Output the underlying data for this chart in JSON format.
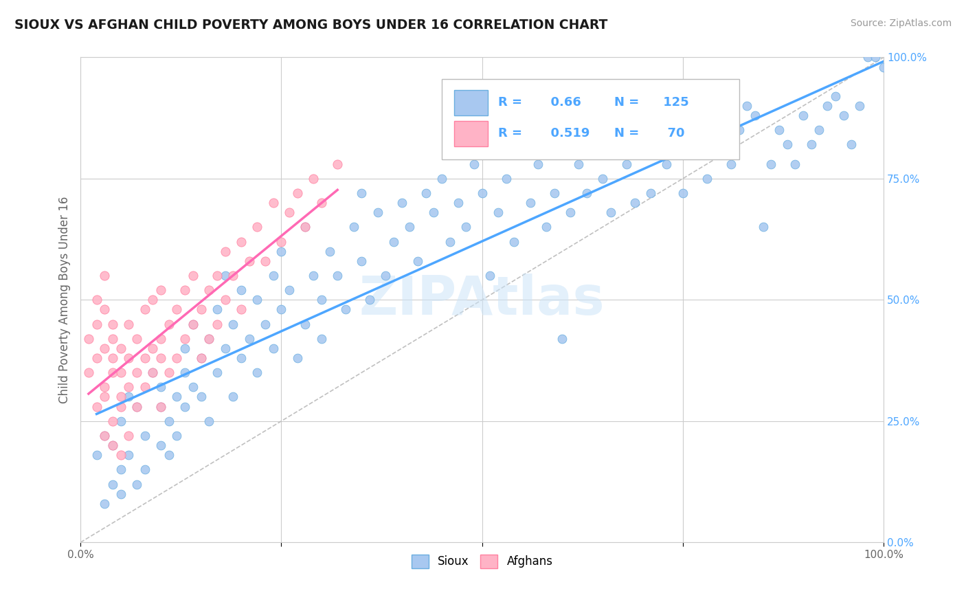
{
  "title": "SIOUX VS AFGHAN CHILD POVERTY AMONG BOYS UNDER 16 CORRELATION CHART",
  "source": "Source: ZipAtlas.com",
  "ylabel": "Child Poverty Among Boys Under 16",
  "legend_sioux_label": "Sioux",
  "legend_afghan_label": "Afghans",
  "R_sioux": 0.66,
  "N_sioux": 125,
  "R_afghan": 0.519,
  "N_afghan": 70,
  "watermark": "ZIPAtlas",
  "sioux_color": "#a8c8f0",
  "sioux_edge_color": "#6aaee0",
  "sioux_line_color": "#4da6ff",
  "afghan_color": "#ffb3c6",
  "afghan_edge_color": "#ff80a0",
  "afghan_line_color": "#ff69b4",
  "label_color": "#4da6ff",
  "grid_color": "#cccccc",
  "bg_color": "#ffffff",
  "sioux_scatter": [
    [
      0.02,
      0.18
    ],
    [
      0.03,
      0.22
    ],
    [
      0.03,
      0.08
    ],
    [
      0.04,
      0.12
    ],
    [
      0.04,
      0.2
    ],
    [
      0.05,
      0.15
    ],
    [
      0.05,
      0.1
    ],
    [
      0.05,
      0.25
    ],
    [
      0.06,
      0.18
    ],
    [
      0.06,
      0.3
    ],
    [
      0.07,
      0.12
    ],
    [
      0.07,
      0.28
    ],
    [
      0.08,
      0.22
    ],
    [
      0.08,
      0.15
    ],
    [
      0.09,
      0.35
    ],
    [
      0.1,
      0.2
    ],
    [
      0.1,
      0.28
    ],
    [
      0.1,
      0.32
    ],
    [
      0.11,
      0.25
    ],
    [
      0.11,
      0.18
    ],
    [
      0.12,
      0.3
    ],
    [
      0.12,
      0.22
    ],
    [
      0.13,
      0.4
    ],
    [
      0.13,
      0.35
    ],
    [
      0.13,
      0.28
    ],
    [
      0.14,
      0.32
    ],
    [
      0.14,
      0.45
    ],
    [
      0.15,
      0.38
    ],
    [
      0.15,
      0.3
    ],
    [
      0.16,
      0.42
    ],
    [
      0.16,
      0.25
    ],
    [
      0.17,
      0.48
    ],
    [
      0.17,
      0.35
    ],
    [
      0.18,
      0.4
    ],
    [
      0.18,
      0.55
    ],
    [
      0.19,
      0.3
    ],
    [
      0.19,
      0.45
    ],
    [
      0.2,
      0.38
    ],
    [
      0.2,
      0.52
    ],
    [
      0.21,
      0.42
    ],
    [
      0.22,
      0.5
    ],
    [
      0.22,
      0.35
    ],
    [
      0.23,
      0.45
    ],
    [
      0.24,
      0.55
    ],
    [
      0.24,
      0.4
    ],
    [
      0.25,
      0.6
    ],
    [
      0.25,
      0.48
    ],
    [
      0.26,
      0.52
    ],
    [
      0.27,
      0.38
    ],
    [
      0.28,
      0.65
    ],
    [
      0.28,
      0.45
    ],
    [
      0.29,
      0.55
    ],
    [
      0.3,
      0.5
    ],
    [
      0.3,
      0.42
    ],
    [
      0.31,
      0.6
    ],
    [
      0.32,
      0.55
    ],
    [
      0.33,
      0.48
    ],
    [
      0.34,
      0.65
    ],
    [
      0.35,
      0.58
    ],
    [
      0.35,
      0.72
    ],
    [
      0.36,
      0.5
    ],
    [
      0.37,
      0.68
    ],
    [
      0.38,
      0.55
    ],
    [
      0.39,
      0.62
    ],
    [
      0.4,
      0.7
    ],
    [
      0.41,
      0.65
    ],
    [
      0.42,
      0.58
    ],
    [
      0.43,
      0.72
    ],
    [
      0.44,
      0.68
    ],
    [
      0.45,
      0.75
    ],
    [
      0.46,
      0.62
    ],
    [
      0.47,
      0.7
    ],
    [
      0.48,
      0.65
    ],
    [
      0.49,
      0.78
    ],
    [
      0.5,
      0.72
    ],
    [
      0.51,
      0.55
    ],
    [
      0.52,
      0.68
    ],
    [
      0.53,
      0.75
    ],
    [
      0.54,
      0.62
    ],
    [
      0.55,
      0.8
    ],
    [
      0.56,
      0.7
    ],
    [
      0.57,
      0.78
    ],
    [
      0.58,
      0.65
    ],
    [
      0.59,
      0.72
    ],
    [
      0.6,
      0.85
    ],
    [
      0.6,
      0.42
    ],
    [
      0.61,
      0.68
    ],
    [
      0.62,
      0.78
    ],
    [
      0.63,
      0.72
    ],
    [
      0.64,
      0.8
    ],
    [
      0.65,
      0.75
    ],
    [
      0.66,
      0.68
    ],
    [
      0.67,
      0.82
    ],
    [
      0.68,
      0.78
    ],
    [
      0.69,
      0.7
    ],
    [
      0.7,
      0.85
    ],
    [
      0.71,
      0.72
    ],
    [
      0.72,
      0.8
    ],
    [
      0.73,
      0.78
    ],
    [
      0.74,
      0.9
    ],
    [
      0.75,
      0.72
    ],
    [
      0.76,
      0.85
    ],
    [
      0.77,
      0.8
    ],
    [
      0.78,
      0.75
    ],
    [
      0.79,
      0.88
    ],
    [
      0.8,
      0.82
    ],
    [
      0.81,
      0.78
    ],
    [
      0.82,
      0.85
    ],
    [
      0.83,
      0.9
    ],
    [
      0.84,
      0.88
    ],
    [
      0.85,
      0.65
    ],
    [
      0.86,
      0.78
    ],
    [
      0.87,
      0.85
    ],
    [
      0.88,
      0.82
    ],
    [
      0.89,
      0.78
    ],
    [
      0.9,
      0.88
    ],
    [
      0.91,
      0.82
    ],
    [
      0.92,
      0.85
    ],
    [
      0.93,
      0.9
    ],
    [
      0.94,
      0.92
    ],
    [
      0.95,
      0.88
    ],
    [
      0.96,
      0.82
    ],
    [
      0.97,
      0.9
    ],
    [
      0.98,
      1.0
    ],
    [
      0.99,
      1.0
    ],
    [
      1.0,
      0.98
    ]
  ],
  "afghan_scatter": [
    [
      0.01,
      0.35
    ],
    [
      0.01,
      0.42
    ],
    [
      0.02,
      0.28
    ],
    [
      0.02,
      0.38
    ],
    [
      0.02,
      0.45
    ],
    [
      0.02,
      0.5
    ],
    [
      0.03,
      0.32
    ],
    [
      0.03,
      0.4
    ],
    [
      0.03,
      0.48
    ],
    [
      0.03,
      0.55
    ],
    [
      0.03,
      0.22
    ],
    [
      0.03,
      0.3
    ],
    [
      0.04,
      0.35
    ],
    [
      0.04,
      0.45
    ],
    [
      0.04,
      0.2
    ],
    [
      0.04,
      0.25
    ],
    [
      0.04,
      0.38
    ],
    [
      0.04,
      0.42
    ],
    [
      0.05,
      0.3
    ],
    [
      0.05,
      0.4
    ],
    [
      0.05,
      0.18
    ],
    [
      0.05,
      0.28
    ],
    [
      0.05,
      0.35
    ],
    [
      0.06,
      0.32
    ],
    [
      0.06,
      0.45
    ],
    [
      0.06,
      0.22
    ],
    [
      0.06,
      0.38
    ],
    [
      0.07,
      0.35
    ],
    [
      0.07,
      0.42
    ],
    [
      0.07,
      0.28
    ],
    [
      0.08,
      0.38
    ],
    [
      0.08,
      0.48
    ],
    [
      0.08,
      0.32
    ],
    [
      0.09,
      0.4
    ],
    [
      0.09,
      0.5
    ],
    [
      0.09,
      0.35
    ],
    [
      0.1,
      0.42
    ],
    [
      0.1,
      0.52
    ],
    [
      0.1,
      0.38
    ],
    [
      0.1,
      0.28
    ],
    [
      0.11,
      0.45
    ],
    [
      0.11,
      0.35
    ],
    [
      0.12,
      0.48
    ],
    [
      0.12,
      0.38
    ],
    [
      0.13,
      0.42
    ],
    [
      0.13,
      0.52
    ],
    [
      0.14,
      0.45
    ],
    [
      0.14,
      0.55
    ],
    [
      0.15,
      0.48
    ],
    [
      0.15,
      0.38
    ],
    [
      0.16,
      0.52
    ],
    [
      0.16,
      0.42
    ],
    [
      0.17,
      0.55
    ],
    [
      0.17,
      0.45
    ],
    [
      0.18,
      0.5
    ],
    [
      0.18,
      0.6
    ],
    [
      0.19,
      0.55
    ],
    [
      0.2,
      0.62
    ],
    [
      0.2,
      0.48
    ],
    [
      0.21,
      0.58
    ],
    [
      0.22,
      0.65
    ],
    [
      0.23,
      0.58
    ],
    [
      0.24,
      0.7
    ],
    [
      0.25,
      0.62
    ],
    [
      0.26,
      0.68
    ],
    [
      0.27,
      0.72
    ],
    [
      0.28,
      0.65
    ],
    [
      0.29,
      0.75
    ],
    [
      0.3,
      0.7
    ],
    [
      0.32,
      0.78
    ]
  ],
  "xlim": [
    0,
    1
  ],
  "ylim": [
    0,
    1
  ],
  "xticks": [
    0,
    0.25,
    0.5,
    0.75,
    1.0
  ],
  "yticks": [
    0,
    0.25,
    0.5,
    0.75,
    1.0
  ],
  "yticklabels": [
    "0.0%",
    "25.0%",
    "50.0%",
    "75.0%",
    "100.0%"
  ]
}
